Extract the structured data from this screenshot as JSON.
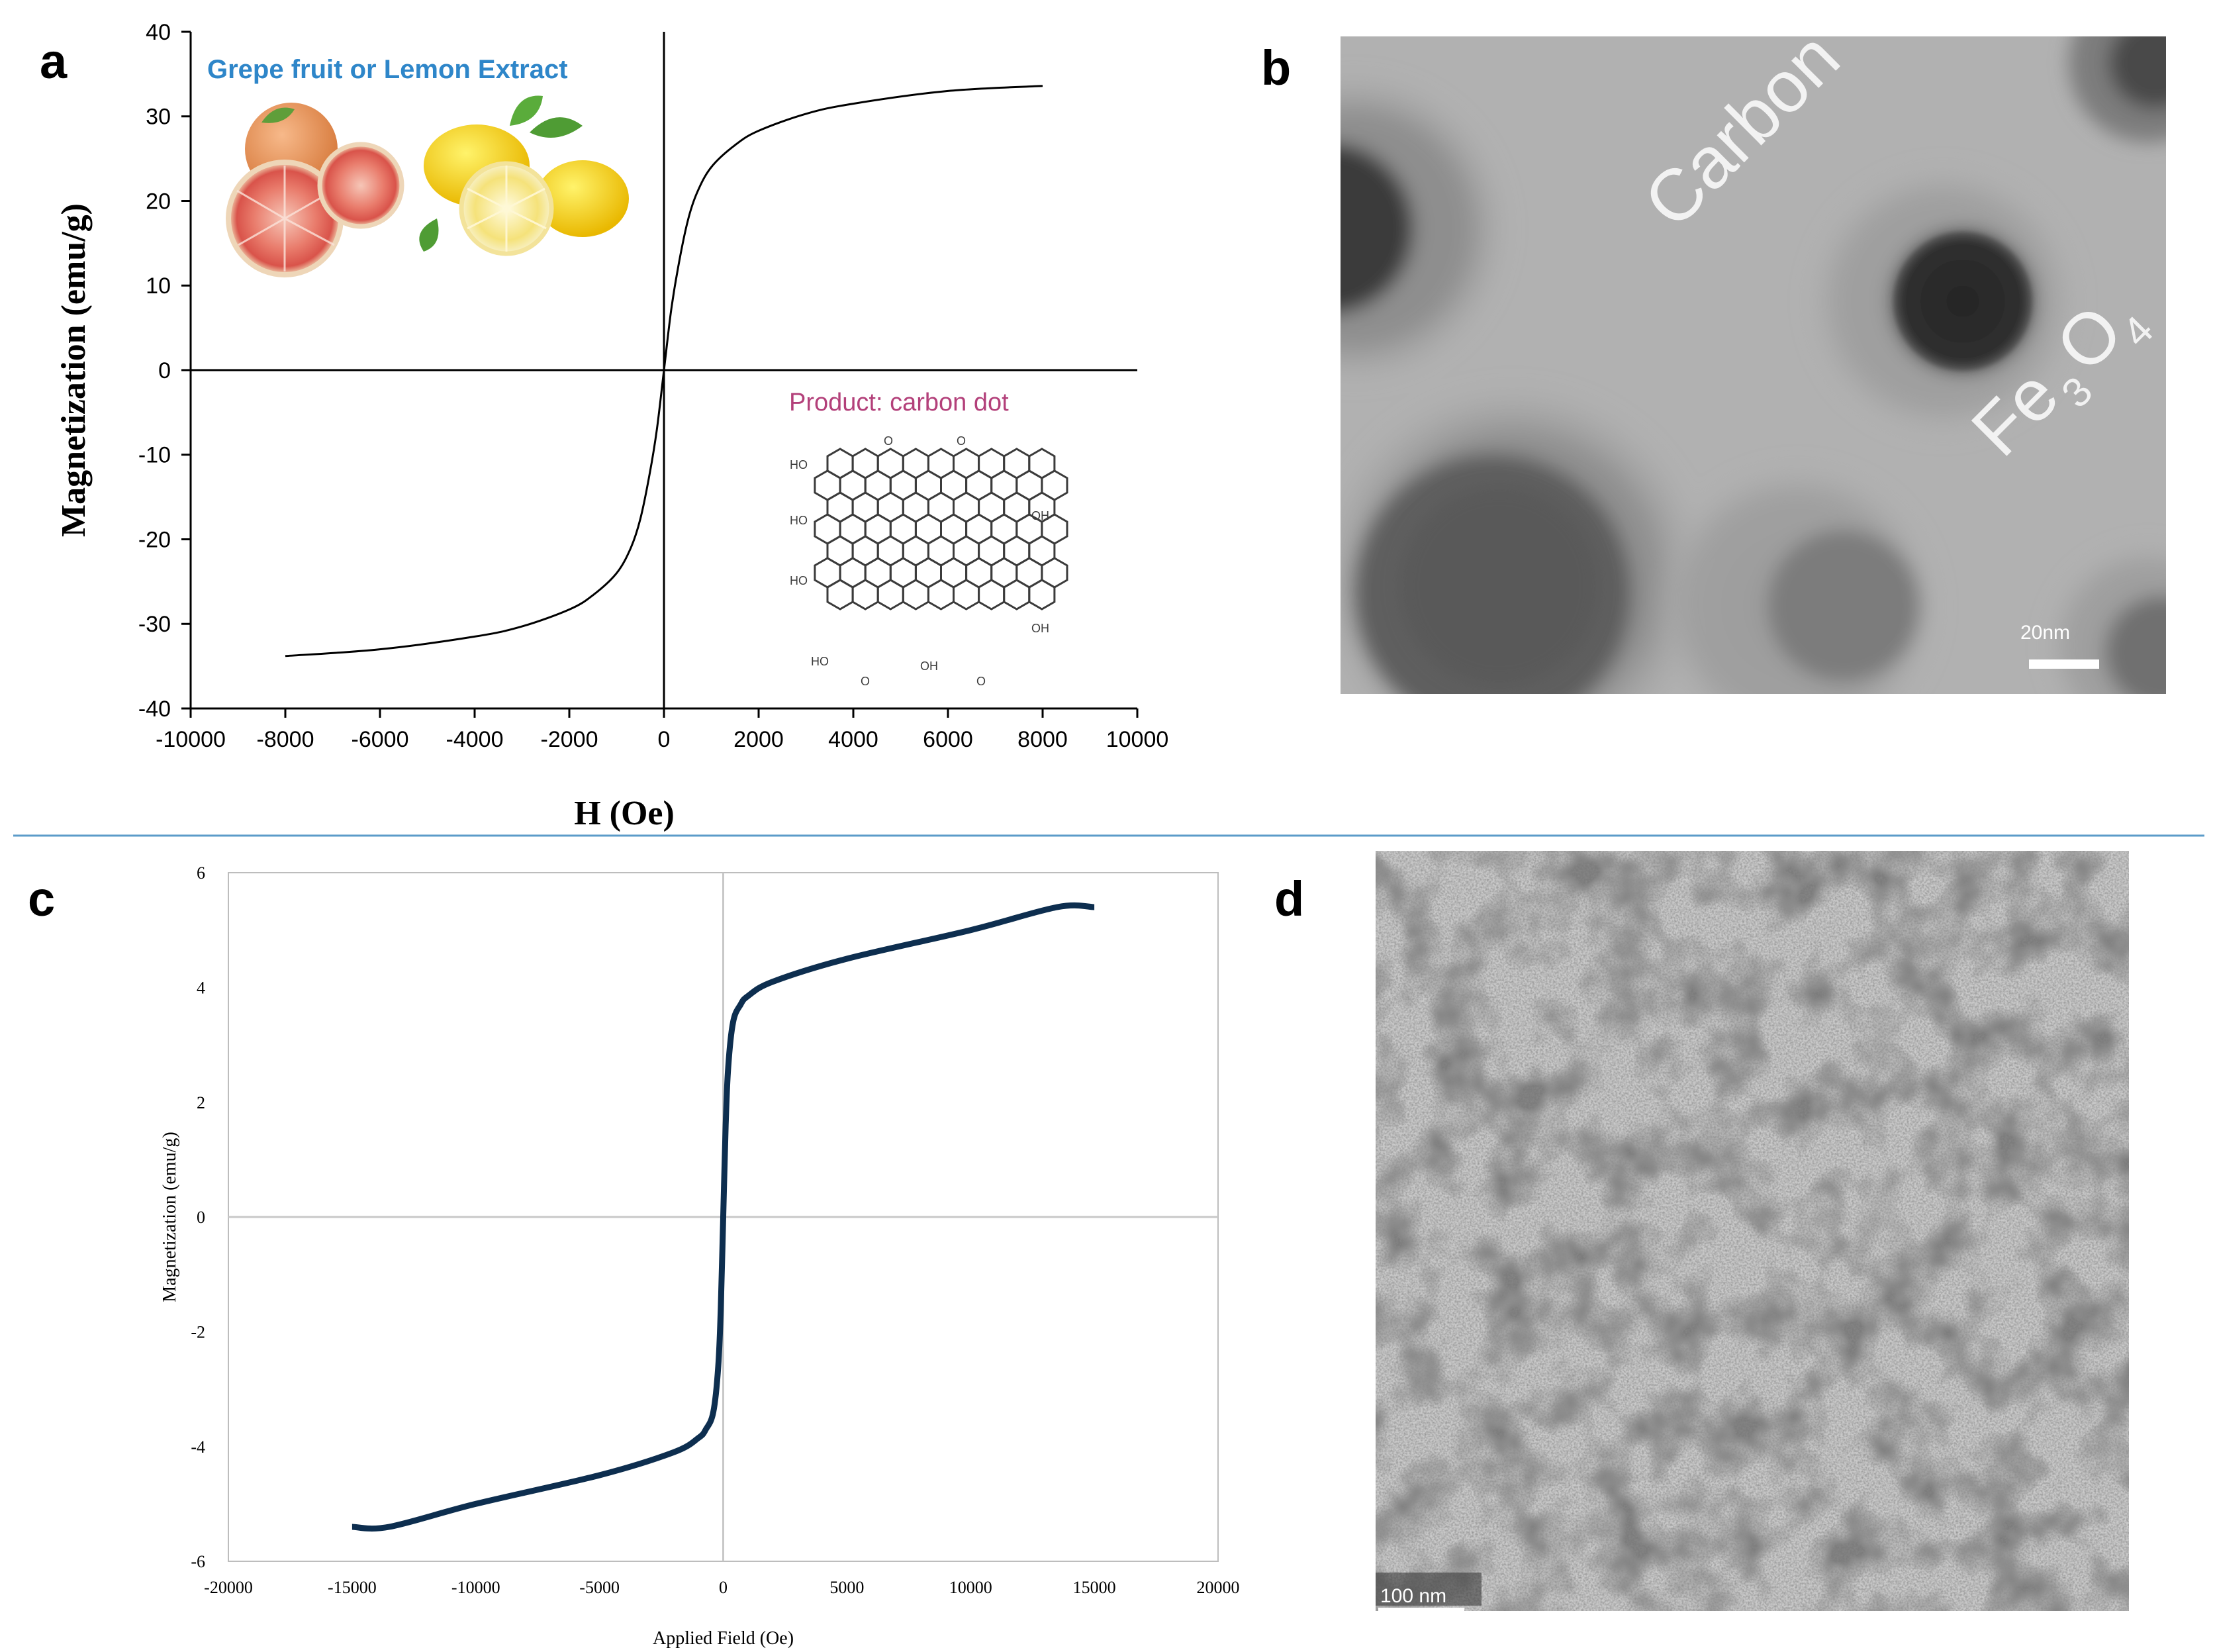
{
  "panels": {
    "a": {
      "letter": "a",
      "chart_data": {
        "type": "line",
        "xlabel": "H (Oe)",
        "ylabel": "Magnetization (emu/g)",
        "xlim": [
          -10000,
          10000
        ],
        "ylim": [
          -40,
          40
        ],
        "xticks": [
          -10000,
          -8000,
          -6000,
          -4000,
          -2000,
          0,
          2000,
          4000,
          6000,
          8000,
          10000
        ],
        "yticks": [
          -40,
          -30,
          -20,
          -10,
          0,
          10,
          20,
          30,
          40
        ],
        "xtick_labels": [
          "-10000",
          "-8000",
          "-6000",
          "-4000",
          "-2000",
          "0",
          "2000",
          "4000",
          "6000",
          "8000",
          "10000"
        ],
        "ytick_labels": [
          "-40",
          "-30",
          "-20",
          "-10",
          "0",
          "10",
          "20",
          "30",
          "40"
        ],
        "grid": false,
        "series": [
          {
            "color": "#000000",
            "x": [
              -8000,
              -6000,
              -4000,
              -3000,
              -2000,
              -1500,
              -1000,
              -700,
              -500,
              -300,
              -150,
              0,
              150,
              300,
              500,
              700,
              1000,
              1500,
              2000,
              3000,
              4000,
              6000,
              8000
            ],
            "y": [
              -33.8,
              -33.0,
              -31.5,
              -30.3,
              -28.3,
              -26.6,
              -24.0,
              -21.0,
              -17.6,
              -12.2,
              -7.0,
              0,
              7.0,
              12.2,
              17.6,
              21.0,
              24.0,
              26.6,
              28.3,
              30.3,
              31.5,
              33.0,
              33.6
            ]
          }
        ]
      },
      "inset_title": "Grepe fruit or Lemon Extract",
      "product_label": "Product: carbon dot",
      "title_color": "#2e86c9",
      "product_color": "#b3407a"
    },
    "b": {
      "letter": "b",
      "label_carbon": "Carbon",
      "label_fe": "Fe",
      "label_sub3": "3",
      "label_o": "O",
      "label_sub4": "4",
      "scale_label": "20nm"
    },
    "c": {
      "letter": "c",
      "chart_data": {
        "type": "line",
        "xlabel": "Applied Field (Oe)",
        "ylabel": "Magnetization (emu/g)",
        "xlim": [
          -20000,
          20000
        ],
        "ylim": [
          -6,
          6
        ],
        "xticks": [
          -20000,
          -15000,
          -10000,
          -5000,
          0,
          5000,
          10000,
          15000,
          20000
        ],
        "yticks": [
          -6,
          -4,
          -2,
          0,
          2,
          4,
          6
        ],
        "xtick_labels": [
          "-20000",
          "-15000",
          "-10000",
          "-5000",
          "0",
          "5000",
          "10000",
          "15000",
          "20000"
        ],
        "ytick_labels": [
          "-6",
          "-4",
          "-2",
          "0",
          "2",
          "4",
          "6"
        ],
        "grid": false,
        "series": [
          {
            "color": "#0d2e4f",
            "x": [
              -15000,
              -13500,
              -10000,
              -5000,
              -2000,
              -1000,
              -700,
              -400,
              -200,
              -100,
              0,
              100,
              200,
              400,
              700,
              1000,
              2000,
              5000,
              10000,
              13500,
              15000
            ],
            "y": [
              -5.4,
              -5.4,
              -5.0,
              -4.5,
              -4.1,
              -3.85,
              -3.7,
              -3.4,
              -2.6,
              -1.6,
              0,
              1.6,
              2.6,
              3.4,
              3.7,
              3.85,
              4.1,
              4.5,
              5.0,
              5.4,
              5.4
            ]
          }
        ]
      }
    },
    "d": {
      "letter": "d",
      "scale_label": "100 nm"
    }
  }
}
